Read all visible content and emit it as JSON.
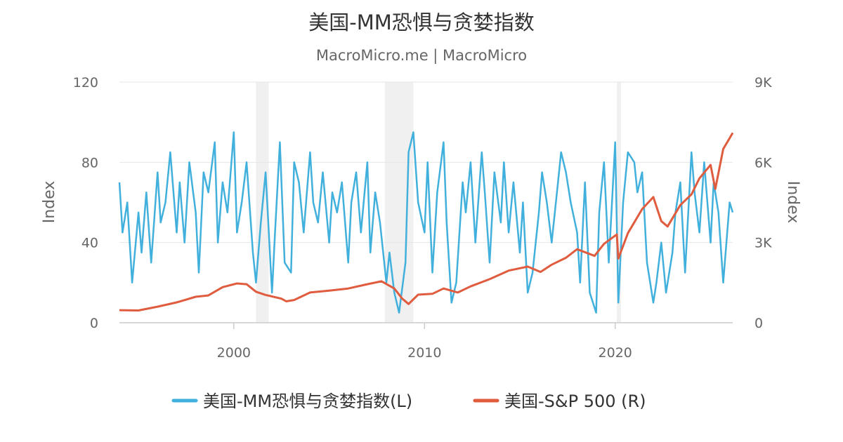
{
  "chart_data": {
    "type": "line",
    "title": "美国-MM恐惧与贪婪指数",
    "subtitle": "MacroMicro.me | MacroMicro",
    "x_axis": {
      "type": "date",
      "range": [
        "1994-01-01",
        "2026-03-01"
      ],
      "ticks": [
        {
          "label": "2000",
          "value": "2000-01-01"
        },
        {
          "label": "2010",
          "value": "2010-01-01"
        },
        {
          "label": "2020",
          "value": "2020-01-01"
        }
      ]
    },
    "y_axis_left": {
      "label": "Index",
      "range": [
        0,
        120
      ],
      "ticks": [
        {
          "label": "0",
          "value": 0
        },
        {
          "label": "40",
          "value": 40
        },
        {
          "label": "80",
          "value": 80
        },
        {
          "label": "120",
          "value": 120
        }
      ]
    },
    "y_axis_right": {
      "label": "Index",
      "range": [
        0,
        9000
      ],
      "ticks": [
        {
          "label": "0",
          "value": 0
        },
        {
          "label": "3K",
          "value": 3000
        },
        {
          "label": "6K",
          "value": 6000
        },
        {
          "label": "9K",
          "value": 9000
        }
      ]
    },
    "grid": true,
    "legend_position": "bottom",
    "recession_bands": [
      {
        "start": "2001-03-01",
        "end": "2001-11-01"
      },
      {
        "start": "2007-12-01",
        "end": "2009-06-01"
      },
      {
        "start": "2020-02-01",
        "end": "2020-04-01"
      }
    ],
    "series": [
      {
        "name": "美国-MM恐惧与贪婪指数(L)",
        "axis": "left",
        "color": "#41b0dc",
        "x": [
          "1994-01-01",
          "1994-03-01",
          "1994-06-01",
          "1994-09-01",
          "1995-01-01",
          "1995-03-01",
          "1995-06-01",
          "1995-09-01",
          "1996-01-01",
          "1996-03-01",
          "1996-06-01",
          "1996-09-01",
          "1997-01-01",
          "1997-03-01",
          "1997-06-01",
          "1997-09-01",
          "1998-01-01",
          "1998-03-01",
          "1998-06-01",
          "1998-09-01",
          "1999-01-01",
          "1999-03-01",
          "1999-06-01",
          "1999-09-01",
          "2000-01-01",
          "2000-03-01",
          "2000-06-01",
          "2000-09-01",
          "2001-01-01",
          "2001-03-01",
          "2001-06-01",
          "2001-09-01",
          "2002-01-01",
          "2002-03-01",
          "2002-06-01",
          "2002-09-01",
          "2003-01-01",
          "2003-03-01",
          "2003-06-01",
          "2003-09-01",
          "2004-01-01",
          "2004-03-01",
          "2004-06-01",
          "2004-09-01",
          "2005-01-01",
          "2005-03-01",
          "2005-06-01",
          "2005-09-01",
          "2006-01-01",
          "2006-03-01",
          "2006-06-01",
          "2006-09-01",
          "2007-01-01",
          "2007-03-01",
          "2007-06-01",
          "2007-09-01",
          "2008-01-01",
          "2008-03-01",
          "2008-06-01",
          "2008-09-01",
          "2009-01-01",
          "2009-03-01",
          "2009-06-01",
          "2009-09-01",
          "2010-01-01",
          "2010-03-01",
          "2010-06-01",
          "2010-09-01",
          "2011-01-01",
          "2011-03-01",
          "2011-06-01",
          "2011-09-01",
          "2012-01-01",
          "2012-03-01",
          "2012-06-01",
          "2012-09-01",
          "2013-01-01",
          "2013-03-01",
          "2013-06-01",
          "2013-09-01",
          "2014-01-01",
          "2014-03-01",
          "2014-06-01",
          "2014-09-01",
          "2015-01-01",
          "2015-03-01",
          "2015-06-01",
          "2015-09-01",
          "2016-01-01",
          "2016-03-01",
          "2016-06-01",
          "2016-09-01",
          "2017-01-01",
          "2017-03-01",
          "2017-06-01",
          "2017-09-01",
          "2018-01-01",
          "2018-03-01",
          "2018-06-01",
          "2018-09-01",
          "2019-01-01",
          "2019-03-01",
          "2019-06-01",
          "2019-09-01",
          "2020-01-01",
          "2020-03-01",
          "2020-06-01",
          "2020-09-01",
          "2021-01-01",
          "2021-03-01",
          "2021-06-01",
          "2021-09-01",
          "2022-01-01",
          "2022-03-01",
          "2022-06-01",
          "2022-09-01",
          "2023-01-01",
          "2023-03-01",
          "2023-06-01",
          "2023-09-01",
          "2024-01-01",
          "2024-03-01",
          "2024-06-01",
          "2024-09-01",
          "2025-01-01",
          "2025-03-01",
          "2025-06-01",
          "2025-09-01",
          "2026-01-01",
          "2026-03-01"
        ],
        "values": [
          70,
          45,
          60,
          20,
          55,
          35,
          65,
          30,
          75,
          50,
          60,
          85,
          45,
          70,
          40,
          80,
          55,
          25,
          75,
          65,
          90,
          40,
          70,
          55,
          95,
          45,
          60,
          80,
          35,
          20,
          50,
          75,
          15,
          45,
          90,
          30,
          25,
          80,
          70,
          45,
          85,
          60,
          50,
          75,
          40,
          65,
          55,
          70,
          30,
          60,
          75,
          45,
          80,
          35,
          65,
          50,
          20,
          35,
          15,
          5,
          30,
          85,
          95,
          60,
          45,
          80,
          25,
          65,
          90,
          50,
          10,
          20,
          70,
          55,
          80,
          40,
          85,
          65,
          30,
          75,
          50,
          80,
          45,
          70,
          35,
          60,
          15,
          25,
          55,
          75,
          60,
          40,
          70,
          85,
          75,
          60,
          45,
          20,
          70,
          15,
          5,
          55,
          80,
          30,
          90,
          10,
          60,
          85,
          80,
          65,
          75,
          30,
          10,
          20,
          40,
          15,
          35,
          55,
          70,
          25,
          85,
          65,
          45,
          80,
          40,
          70,
          55,
          20,
          60,
          55
        ]
      },
      {
        "name": "美国-S&P 500 (R)",
        "axis": "right",
        "color": "#e05c3f",
        "x": [
          "1994-01-01",
          "1995-01-01",
          "1996-01-01",
          "1997-01-01",
          "1998-01-01",
          "1998-09-01",
          "1999-06-01",
          "2000-03-01",
          "2000-09-01",
          "2001-03-01",
          "2001-09-01",
          "2002-07-01",
          "2002-10-01",
          "2003-03-01",
          "2004-01-01",
          "2005-01-01",
          "2006-01-01",
          "2007-01-01",
          "2007-10-01",
          "2008-06-01",
          "2008-11-01",
          "2009-03-01",
          "2009-09-01",
          "2010-06-01",
          "2011-01-01",
          "2011-10-01",
          "2012-06-01",
          "2013-06-01",
          "2014-06-01",
          "2015-06-01",
          "2016-02-01",
          "2016-09-01",
          "2017-06-01",
          "2018-01-01",
          "2018-12-01",
          "2019-06-01",
          "2020-02-01",
          "2020-03-01",
          "2020-09-01",
          "2021-06-01",
          "2022-01-01",
          "2022-06-01",
          "2022-10-01",
          "2023-06-01",
          "2024-01-01",
          "2024-06-01",
          "2025-01-01",
          "2025-04-01",
          "2025-09-01",
          "2026-01-01",
          "2026-03-01"
        ],
        "values": [
          470,
          460,
          600,
          760,
          970,
          1020,
          1330,
          1470,
          1440,
          1160,
          1040,
          900,
          800,
          850,
          1130,
          1200,
          1280,
          1440,
          1550,
          1280,
          900,
          700,
          1050,
          1080,
          1280,
          1130,
          1360,
          1630,
          1950,
          2100,
          1900,
          2170,
          2430,
          2750,
          2500,
          2950,
          3300,
          2400,
          3350,
          4250,
          4700,
          3800,
          3600,
          4400,
          4800,
          5400,
          5900,
          5000,
          6500,
          6900,
          7100
        ]
      }
    ]
  }
}
